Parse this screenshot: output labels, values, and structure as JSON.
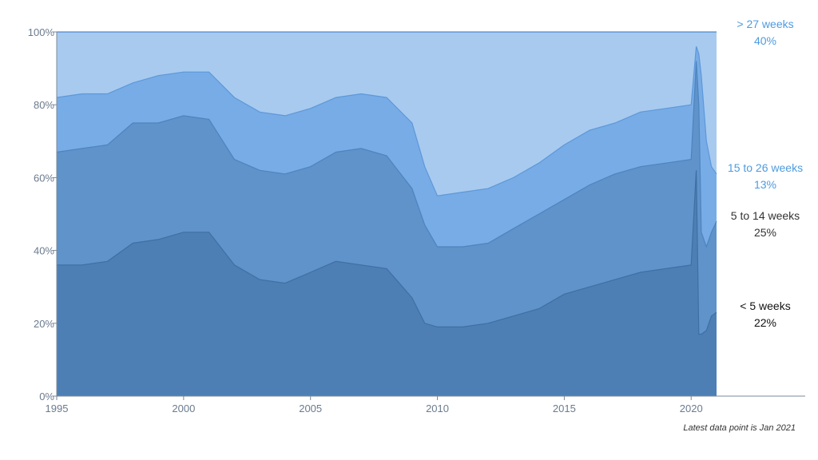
{
  "chart_data": {
    "type": "area",
    "stacked": true,
    "title": "",
    "xlabel": "",
    "ylabel": "",
    "xlim": [
      1995,
      2021
    ],
    "ylim": [
      0,
      100
    ],
    "grid": false,
    "legend": "right-side labels",
    "x_ticks": [
      {
        "value": 1995,
        "label": "1995"
      },
      {
        "value": 2000,
        "label": "2000"
      },
      {
        "value": 2005,
        "label": "2005"
      },
      {
        "value": 2010,
        "label": "2010"
      },
      {
        "value": 2015,
        "label": "2015"
      },
      {
        "value": 2020,
        "label": "2020"
      }
    ],
    "y_ticks": [
      {
        "value": 0,
        "label": "0%"
      },
      {
        "value": 20,
        "label": "20%"
      },
      {
        "value": 40,
        "label": "40%"
      },
      {
        "value": 60,
        "label": "60%"
      },
      {
        "value": 80,
        "label": "80%"
      },
      {
        "value": 100,
        "label": "100%"
      }
    ],
    "x": [
      1995,
      1996,
      1997,
      1998,
      1999,
      2000,
      2001,
      2002,
      2003,
      2004,
      2005,
      2006,
      2007,
      2008,
      2009,
      2009.5,
      2010,
      2011,
      2012,
      2013,
      2014,
      2015,
      2016,
      2017,
      2018,
      2019,
      2020,
      2020.2,
      2020.3,
      2020.4,
      2020.6,
      2020.8,
      2021
    ],
    "cumulative_series": [
      {
        "key": "lt5",
        "color": "#4d7fb5",
        "line_color": "#3f6fa3",
        "values": [
          36,
          36,
          37,
          42,
          43,
          45,
          45,
          36,
          32,
          31,
          34,
          37,
          36,
          35,
          27,
          20,
          19,
          19,
          20,
          22,
          24,
          28,
          30,
          32,
          34,
          35,
          36,
          62,
          17,
          17,
          18,
          22,
          23
        ]
      },
      {
        "key": "5to14",
        "color": "#5f93c9",
        "line_color": "#4d84bf",
        "values": [
          67,
          68,
          69,
          75,
          75,
          77,
          76,
          65,
          62,
          61,
          63,
          67,
          68,
          66,
          57,
          47,
          41,
          41,
          42,
          46,
          50,
          54,
          58,
          61,
          63,
          64,
          65,
          92,
          80,
          45,
          41,
          45,
          48
        ]
      },
      {
        "key": "15to26",
        "color": "#78ace6",
        "line_color": "#5c98d9",
        "values": [
          82,
          83,
          83,
          86,
          88,
          89,
          89,
          82,
          78,
          77,
          79,
          82,
          83,
          82,
          75,
          63,
          55,
          56,
          57,
          60,
          64,
          69,
          73,
          75,
          78,
          79,
          80,
          96,
          94,
          88,
          70,
          63,
          61
        ]
      },
      {
        "key": "gt27",
        "color": "#a8caef",
        "line_color": "#4d8ad0",
        "values": [
          100,
          100,
          100,
          100,
          100,
          100,
          100,
          100,
          100,
          100,
          100,
          100,
          100,
          100,
          100,
          100,
          100,
          100,
          100,
          100,
          100,
          100,
          100,
          100,
          100,
          100,
          100,
          100,
          100,
          100,
          100,
          100,
          100
        ]
      }
    ],
    "series_labels": [
      {
        "name": "> 27 weeks",
        "value": "40%",
        "color": "#4e9be0"
      },
      {
        "name": "15 to 26 weeks",
        "value": "13%",
        "color": "#4e9be0"
      },
      {
        "name": "5 to 14 weeks",
        "value": "25%",
        "color": "#333333"
      },
      {
        "name": "< 5 weeks",
        "value": "22%",
        "color": "#111111"
      }
    ],
    "note": "Latest data point is Jan 2021"
  }
}
